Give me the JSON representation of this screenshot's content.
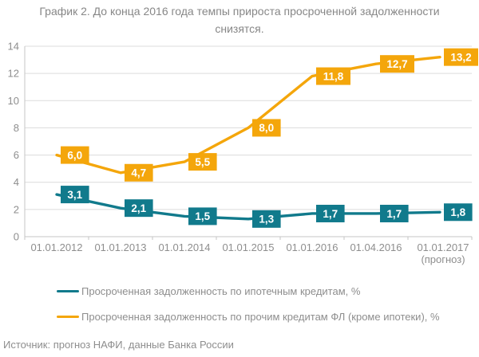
{
  "header": {
    "title_line1": "График 2. До конца 2016 года темпы прироста просроченной задолженности",
    "title_line2": "снизятся."
  },
  "legend": {
    "items": [
      {
        "label": "Просроченная задолженность по ипотечным кредитам, %",
        "color": "#117A8C"
      },
      {
        "label": "Просроченная задолженность по прочим кредитам ФЛ (кроме ипотеки), %",
        "color": "#F4A60B"
      }
    ]
  },
  "footer": {
    "source": "Источник: прогноз НАФИ, данные Банка России"
  },
  "chart_data": {
    "type": "line",
    "title": "График 2. До конца 2016 года темпы прироста просроченной задолженности снизятся.",
    "categories": [
      "01.01.2012",
      "01.01.2013",
      "01.01.2014",
      "01.01.2015",
      "01.01.2016",
      "01.04.2016",
      "01.01.2017\n(прогноз)"
    ],
    "series": [
      {
        "name": "Просроченная задолженность по ипотечным кредитам, %",
        "color": "#117A8C",
        "values": [
          3.1,
          2.1,
          1.5,
          1.3,
          1.7,
          1.7,
          1.8
        ],
        "labels": [
          "3,1",
          "2,1",
          "1,5",
          "1,3",
          "1,7",
          "1,7",
          "1,8"
        ]
      },
      {
        "name": "Просроченная задолженность по прочим кредитам ФЛ (кроме ипотеки), %",
        "color": "#F4A60B",
        "values": [
          6.0,
          4.7,
          5.5,
          8.0,
          11.8,
          12.7,
          13.2
        ],
        "labels": [
          "6,0",
          "4,7",
          "5,5",
          "8,0",
          "11,8",
          "12,7",
          "13,2"
        ]
      }
    ],
    "xlabel": "",
    "ylabel": "",
    "ylim": [
      0,
      14
    ],
    "ytick_step": 2,
    "grid": "horizontal",
    "legend_position": "bottom",
    "data_label_text_color": "#FFFFFF",
    "grid_color": "#DCDCDC",
    "axis_color": "#C6C6C6",
    "tick_text_color": "#8E8E8E"
  }
}
